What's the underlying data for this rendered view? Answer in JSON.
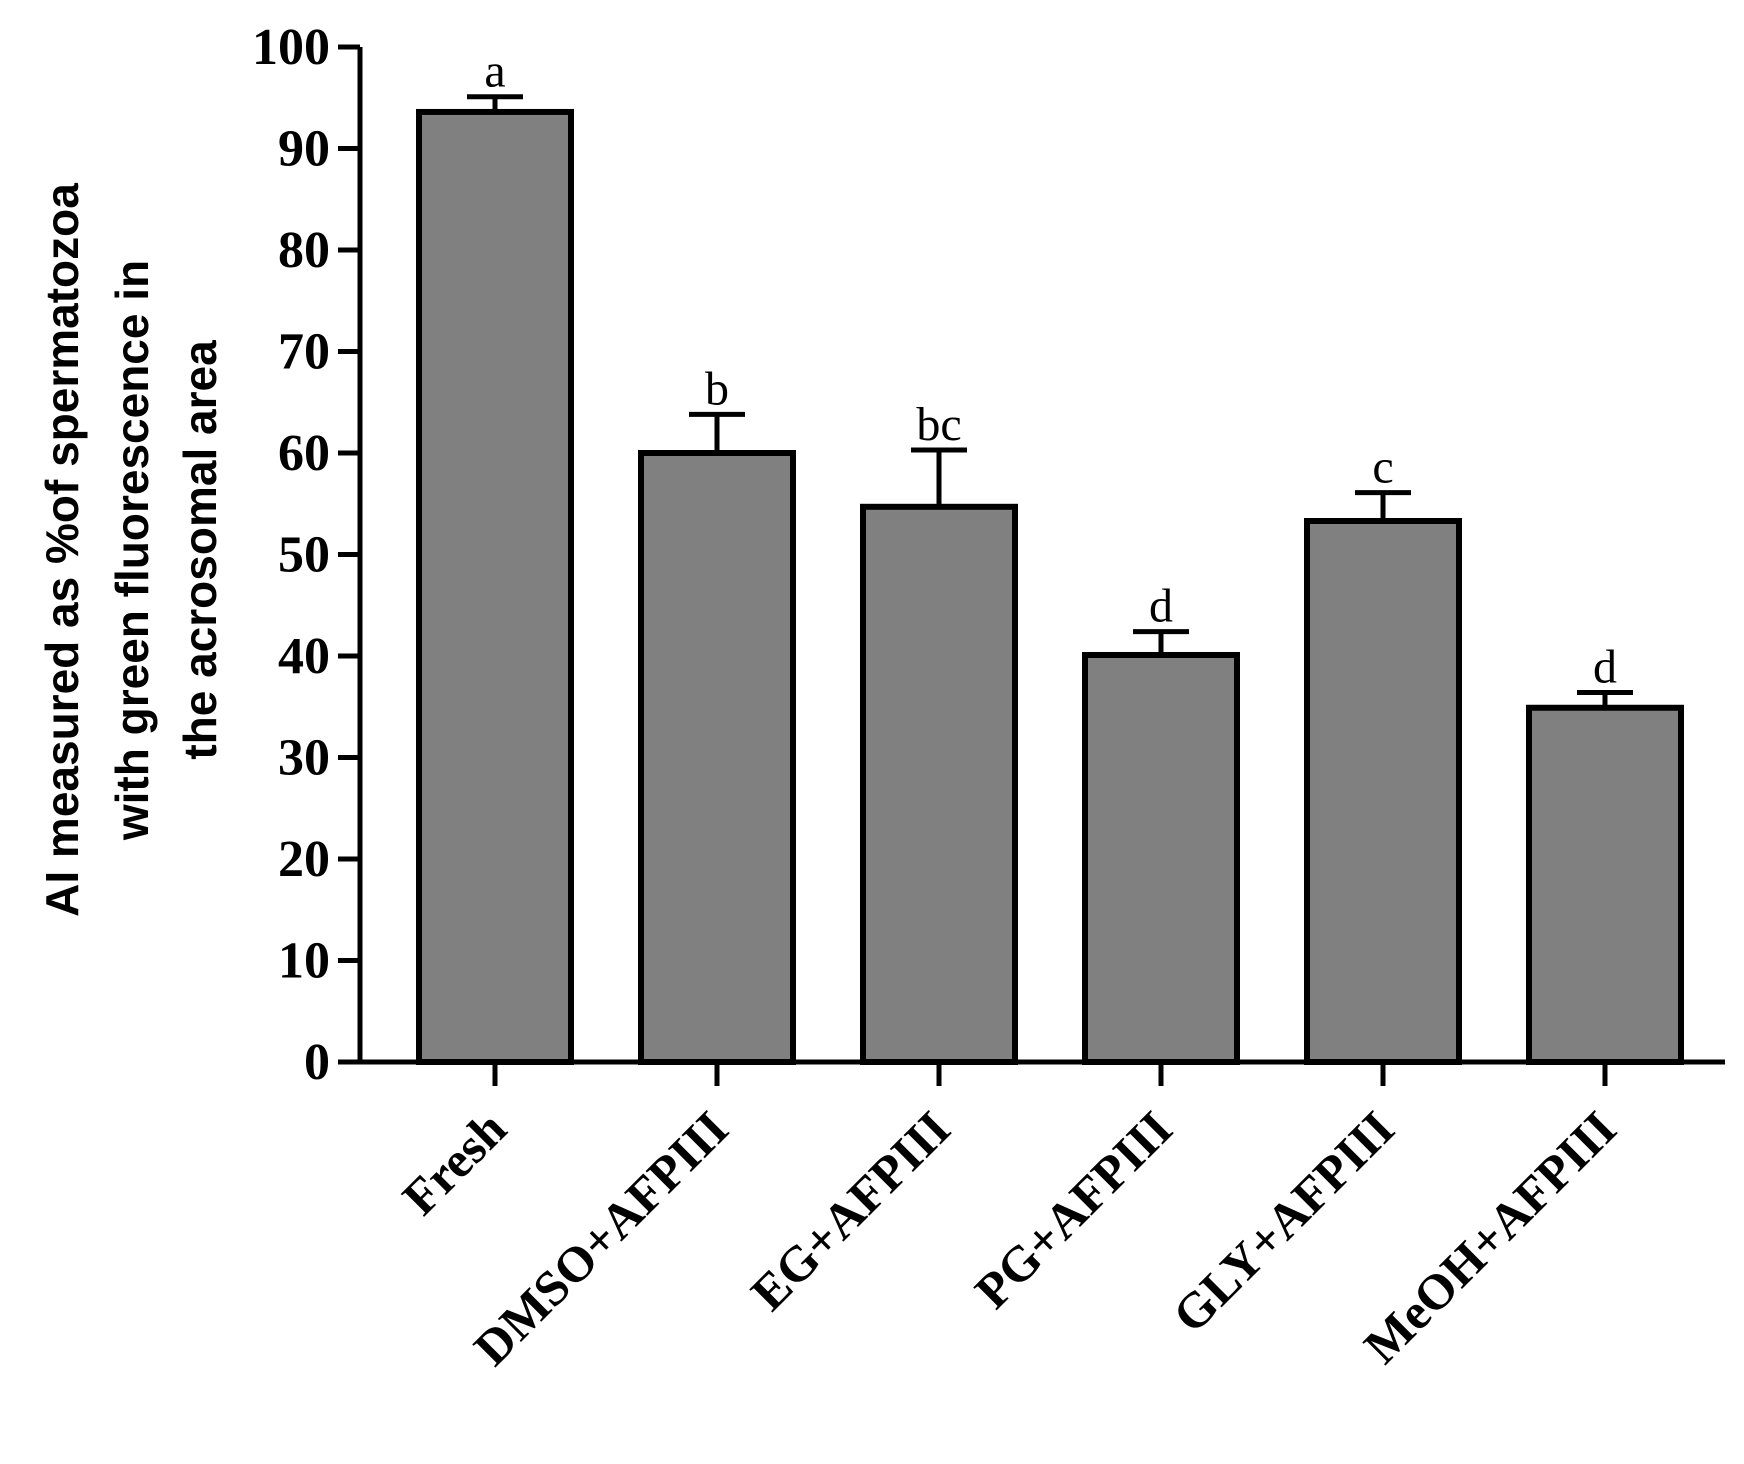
{
  "chart_data": {
    "type": "bar",
    "title": "",
    "xlabel": "",
    "ylabel_lines": [
      "AI measured as %of spermatozoa",
      "with green fluorescence in",
      "the acrosomal area"
    ],
    "categories": [
      "Fresh",
      "DMSO+AFPIII",
      "EG+AFPIII",
      "PG+AFPIII",
      "GLY+AFPIII",
      "MeOH+AFPIII"
    ],
    "values": [
      93.6,
      60.0,
      54.7,
      40.1,
      53.3,
      34.9
    ],
    "errors": [
      1.5,
      3.8,
      5.6,
      2.3,
      2.8,
      1.5
    ],
    "significance": [
      "a",
      "b",
      "bc",
      "d",
      "c",
      "d"
    ],
    "ylim": [
      0,
      100
    ],
    "yticks": [
      0,
      10,
      20,
      30,
      40,
      50,
      60,
      70,
      80,
      90,
      100
    ],
    "colors": {
      "bar": "#808080",
      "stroke": "#000000"
    }
  }
}
